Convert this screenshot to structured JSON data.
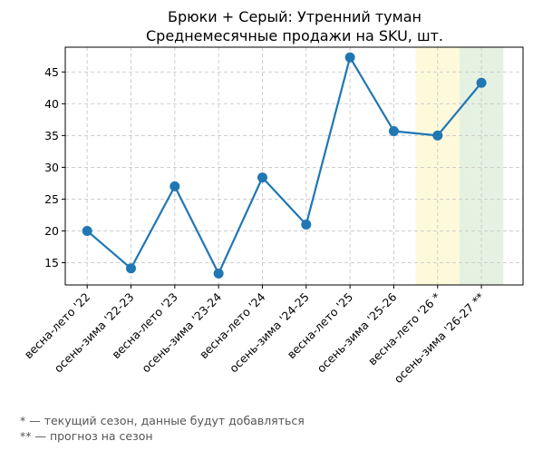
{
  "chart_data": {
    "type": "line",
    "title": "Брюки + Серый: Утренний туман",
    "subtitle": "Среднемесячные продажи на SKU, шт.",
    "categories": [
      "весна-лето '22",
      "осень-зима '22-23",
      "весна-лето '23",
      "осень-зима '23-24",
      "весна-лето '24",
      "осень-зима '24-25",
      "весна-лето '25",
      "осень-зима '25-26",
      "весна-лето '26 *",
      "осень-зима '26-27 **"
    ],
    "series": [
      {
        "values": [
          20.0,
          14.1,
          27.0,
          13.3,
          28.4,
          21.0,
          47.3,
          35.7,
          35.0,
          43.3
        ]
      }
    ],
    "xlim": [
      -0.5,
      9.95
    ],
    "ylim": [
      11.5,
      48.9
    ],
    "yticks": [
      15,
      20,
      25,
      30,
      35,
      40,
      45
    ],
    "grid": true,
    "highlights": [
      {
        "category_index": 8,
        "color": "#fff9dc",
        "meaning": "current"
      },
      {
        "category_index": 9,
        "color": "#e6f2e1",
        "meaning": "forecast"
      }
    ],
    "line_color": "#1f77b4",
    "footnotes": [
      "* — текущий сезон, данные будут добавляться",
      "** — прогноз на сезон"
    ]
  }
}
